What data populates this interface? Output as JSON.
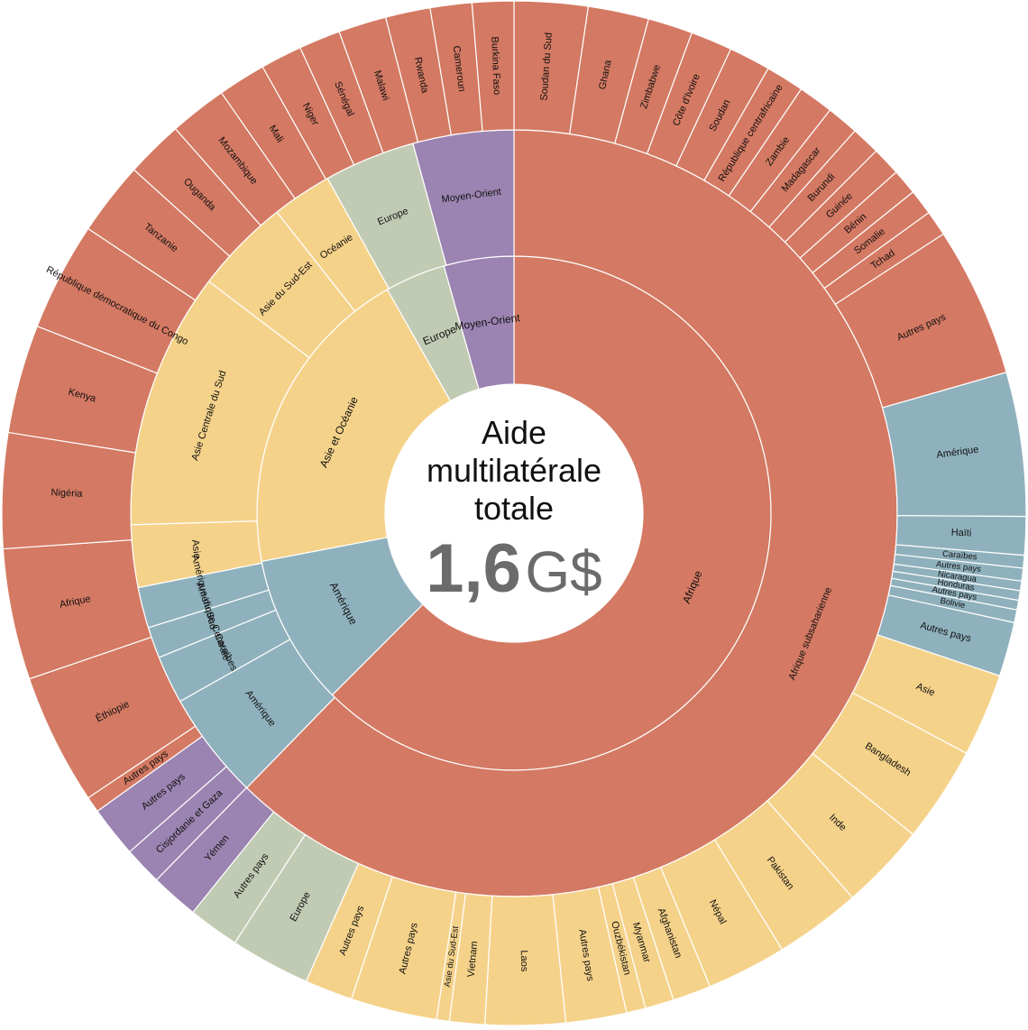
{
  "chart_data": {
    "type": "sunburst",
    "center": {
      "title_lines": [
        "Aide",
        "multilatérale",
        "totale"
      ],
      "value_number": "1,6",
      "value_unit": "G$"
    },
    "colors": {
      "Afrique": "#d47963",
      "Amérique": "#8fb1bd",
      "Asie et Océanie": "#f5d28a",
      "Europe": "#c1cbb3",
      "Moyen-Orient": "#9b84b1",
      "separator": "#ffffff",
      "center_title": "#1c2b4a",
      "center_value": "#6b6b6b"
    },
    "share_unit": "percent of total",
    "segments": [
      {
        "ring": 1,
        "name": "Afrique",
        "family": "Afrique",
        "share": 62.5
      },
      {
        "ring": 1,
        "name": "Amérique",
        "family": "Amérique",
        "share": 9.5
      },
      {
        "ring": 1,
        "name": "Asie et Océanie",
        "family": "Asie et Océanie",
        "share": 19.8
      },
      {
        "ring": 1,
        "name": "Europe",
        "family": "Europe",
        "share": 3.8
      },
      {
        "ring": 1,
        "name": "Moyen-Orient",
        "family": "Moyen-Orient",
        "share": 4.4
      },
      {
        "ring": 2,
        "name": "Afrique subsaharienne",
        "family": "Afrique",
        "share": 61.6
      },
      {
        "ring": 2,
        "name": "Amérique",
        "family": "Amérique",
        "share": 4.5
      },
      {
        "ring": 2,
        "name": "Caraïbes",
        "family": "Amérique",
        "share": 2.0
      },
      {
        "ring": 2,
        "name": "Amérique Centrale",
        "family": "Amérique",
        "share": 1.3
      },
      {
        "ring": 2,
        "name": "Amérique du Sud",
        "family": "Amérique",
        "share": 1.7
      },
      {
        "ring": 2,
        "name": "Asie",
        "family": "Asie et Océanie",
        "share": 2.6
      },
      {
        "ring": 2,
        "name": "Asie Centrale du Sud",
        "family": "Asie et Océanie",
        "share": 10.7
      },
      {
        "ring": 2,
        "name": "Asie du Sud-Est",
        "family": "Asie et Océanie",
        "share": 4.0
      },
      {
        "ring": 2,
        "name": "Océanie",
        "family": "Asie et Océanie",
        "share": 2.5
      },
      {
        "ring": 2,
        "name": "Europe",
        "family": "Europe",
        "share": 3.8
      },
      {
        "ring": 2,
        "name": "Moyen-Orient",
        "family": "Moyen-Orient",
        "share": 4.2
      },
      {
        "ring": 3,
        "name": "Soudan du Sud",
        "family": "Afrique",
        "share": 2.3
      },
      {
        "ring": 3,
        "name": "Ghana",
        "family": "Afrique",
        "share": 1.9
      },
      {
        "ring": 3,
        "name": "Zimbabwe",
        "family": "Afrique",
        "share": 1.4
      },
      {
        "ring": 3,
        "name": "Côte d'Ivoire",
        "family": "Afrique",
        "share": 1.3
      },
      {
        "ring": 3,
        "name": "Soudan",
        "family": "Afrique",
        "share": 1.3
      },
      {
        "ring": 3,
        "name": "République centrafricaine",
        "family": "Afrique",
        "share": 1.2
      },
      {
        "ring": 3,
        "name": "Zambie",
        "family": "Afrique",
        "share": 1.1
      },
      {
        "ring": 3,
        "name": "Madagascar",
        "family": "Afrique",
        "share": 1.0
      },
      {
        "ring": 3,
        "name": "Burundi",
        "family": "Afrique",
        "share": 0.9
      },
      {
        "ring": 3,
        "name": "Guinée",
        "family": "Afrique",
        "share": 0.9
      },
      {
        "ring": 3,
        "name": "Bénin",
        "family": "Afrique",
        "share": 0.8
      },
      {
        "ring": 3,
        "name": "Somalie",
        "family": "Afrique",
        "share": 0.8
      },
      {
        "ring": 3,
        "name": "Tchad",
        "family": "Afrique",
        "share": 0.8
      },
      {
        "ring": 3,
        "name": "Autres pays",
        "family": "Afrique",
        "share": 4.7
      },
      {
        "ring": 3,
        "name": "Amérique",
        "family": "Amérique",
        "share": 4.5
      },
      {
        "ring": 3,
        "name": "Haïti",
        "family": "Amérique",
        "share": 1.2
      },
      {
        "ring": 3,
        "name": "Caraïbes",
        "family": "Amérique",
        "share": 0.4
      },
      {
        "ring": 3,
        "name": "Autres pays",
        "family": "Amérique",
        "share": 0.4
      },
      {
        "ring": 3,
        "name": "Nicaragua",
        "family": "Amérique",
        "share": 0.3
      },
      {
        "ring": 3,
        "name": "Honduras",
        "family": "Amérique",
        "share": 0.3
      },
      {
        "ring": 3,
        "name": "Autres pays",
        "family": "Amérique",
        "share": 0.3
      },
      {
        "ring": 3,
        "name": "Bolivie",
        "family": "Amérique",
        "share": 0.4
      },
      {
        "ring": 3,
        "name": "Autres pays",
        "family": "Amérique",
        "share": 1.7
      },
      {
        "ring": 3,
        "name": "Asie",
        "family": "Asie et Océanie",
        "share": 2.6
      },
      {
        "ring": 3,
        "name": "Bangladesh",
        "family": "Asie et Océanie",
        "share": 3.0
      },
      {
        "ring": 3,
        "name": "Inde",
        "family": "Asie et Océanie",
        "share": 2.7
      },
      {
        "ring": 3,
        "name": "Pakistan",
        "family": "Asie et Océanie",
        "share": 2.7
      },
      {
        "ring": 3,
        "name": "Népal",
        "family": "Asie et Océanie",
        "share": 2.5
      },
      {
        "ring": 3,
        "name": "Afghanistan",
        "family": "Asie et Océanie",
        "share": 1.2
      },
      {
        "ring": 3,
        "name": "Myanmar",
        "family": "Asie et Océanie",
        "share": 0.9
      },
      {
        "ring": 3,
        "name": "Ouzbékistan",
        "family": "Asie et Océanie",
        "share": 0.6
      },
      {
        "ring": 3,
        "name": "Autres pays",
        "family": "Asie et Océanie",
        "share": 1.9
      },
      {
        "ring": 3,
        "name": "Laos",
        "family": "Asie et Océanie",
        "share": 2.5
      },
      {
        "ring": 3,
        "name": "Vietnam",
        "family": "Asie et Océanie",
        "share": 1.1
      },
      {
        "ring": 3,
        "name": "Asie du Sud-Est",
        "family": "Asie et Océanie",
        "share": 0.4
      },
      {
        "ring": 3,
        "name": "Autres pays",
        "family": "Asie et Océanie",
        "share": 2.7
      },
      {
        "ring": 3,
        "name": "Autres pays",
        "family": "Asie et Océanie",
        "share": 1.5
      },
      {
        "ring": 3,
        "name": "Europe",
        "family": "Europe",
        "share": 2.5
      },
      {
        "ring": 3,
        "name": "Autres pays",
        "family": "Europe",
        "share": 1.6
      },
      {
        "ring": 3,
        "name": "Yémen",
        "family": "Moyen-Orient",
        "share": 1.5
      },
      {
        "ring": 3,
        "name": "Cisjordanie et Gaza",
        "family": "Moyen-Orient",
        "share": 1.2
      },
      {
        "ring": 3,
        "name": "Autres pays",
        "family": "Moyen-Orient",
        "share": 1.6
      },
      {
        "ring": 3,
        "name": "Autres pays",
        "family": "Afrique",
        "share": 0.5
      },
      {
        "ring": 3,
        "name": "Éthiopie",
        "family": "Afrique",
        "share": 4.1
      },
      {
        "ring": 3,
        "name": "Afrique",
        "family": "Afrique",
        "share": 4.1
      },
      {
        "ring": 3,
        "name": "Nigéria",
        "family": "Afrique",
        "share": 3.6
      },
      {
        "ring": 3,
        "name": "Kenya",
        "family": "Afrique",
        "share": 3.4
      },
      {
        "ring": 3,
        "name": "République démocratique du Congo",
        "family": "Afrique",
        "share": 3.4
      },
      {
        "ring": 3,
        "name": "Tanzanie",
        "family": "Afrique",
        "share": 2.3
      },
      {
        "ring": 3,
        "name": "Ouganda",
        "family": "Afrique",
        "share": 1.8
      },
      {
        "ring": 3,
        "name": "Mozambique",
        "family": "Afrique",
        "share": 1.8
      },
      {
        "ring": 3,
        "name": "Mali",
        "family": "Afrique",
        "share": 1.5
      },
      {
        "ring": 3,
        "name": "Niger",
        "family": "Afrique",
        "share": 1.3
      },
      {
        "ring": 3,
        "name": "Sénégal",
        "family": "Afrique",
        "share": 1.3
      },
      {
        "ring": 3,
        "name": "Malawi",
        "family": "Afrique",
        "share": 1.5
      },
      {
        "ring": 3,
        "name": "Rwanda",
        "family": "Afrique",
        "share": 1.4
      },
      {
        "ring": 3,
        "name": "Cameroun",
        "family": "Afrique",
        "share": 1.3
      },
      {
        "ring": 3,
        "name": "Burkina Faso",
        "family": "Afrique",
        "share": 1.3
      }
    ]
  }
}
